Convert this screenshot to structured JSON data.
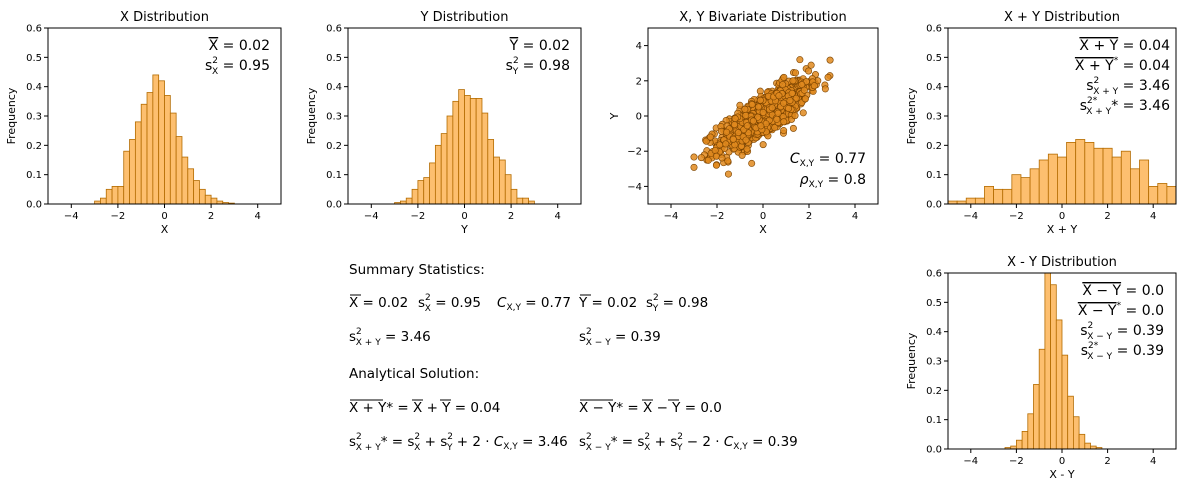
{
  "chart_data": [
    {
      "id": "x_hist",
      "type": "bar",
      "title": "X Distribution",
      "xlabel": "X",
      "ylabel": "Frequency",
      "xlim": [
        -5,
        5
      ],
      "ylim": [
        0,
        0.6
      ],
      "xticks": [
        "−4",
        "−2",
        "0",
        "2",
        "4"
      ],
      "yticks": [
        "0.0",
        "0.1",
        "0.2",
        "0.3",
        "0.4",
        "0.5",
        "0.6"
      ],
      "bin_start": -3.0,
      "bin_width": 0.25,
      "values": [
        0.01,
        0.02,
        0.05,
        0.06,
        0.06,
        0.18,
        0.22,
        0.28,
        0.34,
        0.38,
        0.44,
        0.42,
        0.37,
        0.31,
        0.23,
        0.16,
        0.12,
        0.08,
        0.05,
        0.03,
        0.02,
        0.01,
        0.005,
        0.003
      ],
      "annotations": [
        "X̄ = 0.02",
        "s²X = 0.95"
      ]
    },
    {
      "id": "y_hist",
      "type": "bar",
      "title": "Y Distribution",
      "xlabel": "Y",
      "ylabel": "Frequency",
      "xlim": [
        -5,
        5
      ],
      "ylim": [
        0,
        0.6
      ],
      "xticks": [
        "−4",
        "−2",
        "0",
        "2",
        "4"
      ],
      "yticks": [
        "0.0",
        "0.1",
        "0.2",
        "0.3",
        "0.4",
        "0.5",
        "0.6"
      ],
      "bin_start": -3.0,
      "bin_width": 0.25,
      "values": [
        0.005,
        0.01,
        0.02,
        0.05,
        0.08,
        0.09,
        0.14,
        0.2,
        0.24,
        0.3,
        0.35,
        0.39,
        0.37,
        0.36,
        0.36,
        0.31,
        0.22,
        0.16,
        0.15,
        0.1,
        0.05,
        0.02,
        0.02,
        0.01
      ],
      "annotations": [
        "Ȳ = 0.02",
        "s²Y = 0.98"
      ]
    },
    {
      "id": "xy_scatter",
      "type": "scatter",
      "title": "X, Y Bivariate Distribution",
      "xlabel": "X",
      "ylabel": "Y",
      "xlim": [
        -5,
        5
      ],
      "ylim": [
        -5,
        5
      ],
      "xticks": [
        "−4",
        "−2",
        "0",
        "2",
        "4"
      ],
      "yticks": [
        "−4",
        "−2",
        "0",
        "2",
        "4"
      ],
      "n_points": 1000,
      "correlation": 0.77,
      "annotations": [
        "CX,Y = 0.77",
        "ρX,Y = 0.8"
      ]
    },
    {
      "id": "sum_hist",
      "type": "bar",
      "title": "X + Y Distribution",
      "xlabel": "X + Y",
      "ylabel": "Frequency",
      "xlim": [
        -5,
        5
      ],
      "ylim": [
        0,
        0.6
      ],
      "xticks": [
        "−4",
        "−2",
        "0",
        "2",
        "4"
      ],
      "yticks": [
        "0.0",
        "0.1",
        "0.2",
        "0.3",
        "0.4",
        "0.5",
        "0.6"
      ],
      "bin_start": -5.0,
      "bin_width": 0.4,
      "values": [
        0.01,
        0.01,
        0.02,
        0.02,
        0.06,
        0.05,
        0.05,
        0.1,
        0.09,
        0.12,
        0.15,
        0.17,
        0.16,
        0.21,
        0.22,
        0.21,
        0.19,
        0.19,
        0.16,
        0.18,
        0.12,
        0.15,
        0.06,
        0.07,
        0.06,
        0.04,
        0.05,
        0.02
      ],
      "annotations": [
        "X+Y = 0.04",
        "X+Y* = 0.04",
        "s²X+Y = 3.46",
        "s²*X+Y = 3.46"
      ]
    },
    {
      "id": "diff_hist",
      "type": "bar",
      "title": "X - Y Distribution",
      "xlabel": "X - Y",
      "ylabel": "Frequency",
      "xlim": [
        -5,
        5
      ],
      "ylim": [
        0,
        0.6
      ],
      "xticks": [
        "−4",
        "−2",
        "0",
        "2",
        "4"
      ],
      "yticks": [
        "0.0",
        "0.1",
        "0.2",
        "0.3",
        "0.4",
        "0.5",
        "0.6"
      ],
      "bin_start": -2.5,
      "bin_width": 0.25,
      "values": [
        0.005,
        0.01,
        0.03,
        0.06,
        0.12,
        0.22,
        0.34,
        0.6,
        0.56,
        0.44,
        0.32,
        0.18,
        0.11,
        0.05,
        0.02,
        0.01,
        0.005
      ],
      "annotations": [
        "X-Y = 0.0",
        "X-Y* = 0.0",
        "s²X-Y = 0.39",
        "s²*X-Y = 0.39"
      ]
    }
  ],
  "summary": {
    "heading": "Summary Statistics:",
    "row1": {
      "xbar": "X̄ = 0.02",
      "s2x": "s²X = 0.95",
      "cxy": "CX,Y = 0.77",
      "ybar": "Ȳ = 0.02",
      "s2y": "s²Y = 0.98"
    },
    "row2": {
      "s2sum": "s²X+Y = 3.46",
      "s2diff": "s²X−Y = 0.39"
    },
    "analytical_heading": "Analytical Solution:",
    "row3": {
      "sum_mean": "X+Y* = X̄+Ȳ = 0.04",
      "diff_mean": "X−Y* = X̄−Ȳ = 0.0"
    },
    "row4": {
      "sum_var": "s²*X+Y = s²X + s²Y + 2·CX,Y = 3.46",
      "diff_var": "s²*X−Y = s²X + s²Y − 2·CX,Y = 0.39"
    }
  }
}
